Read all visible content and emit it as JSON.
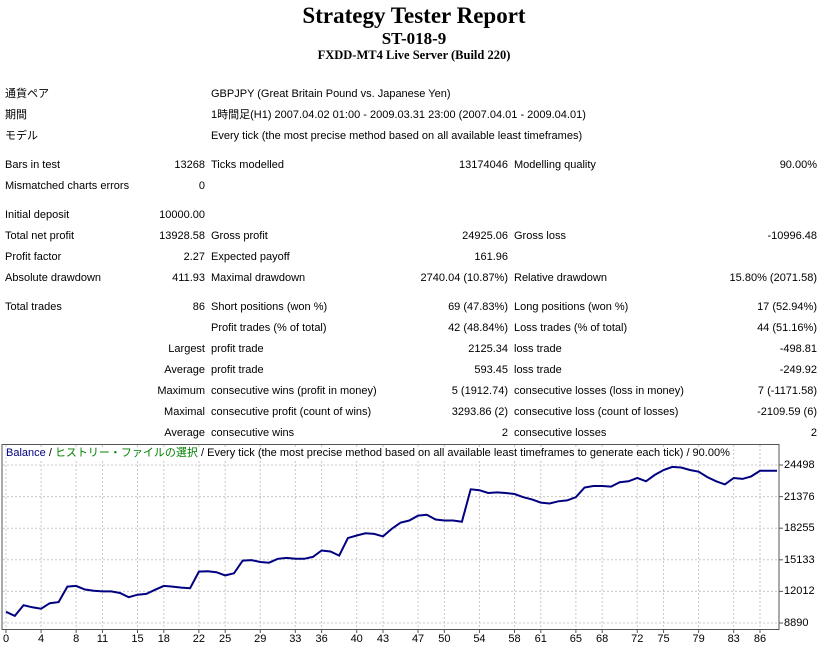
{
  "report": {
    "title": "Strategy Tester Report",
    "subtitle": "ST-018-9",
    "server": "FXDD-MT4 Live Server (Build 220)"
  },
  "summary_rows": [
    {
      "c1": "通貨ペア",
      "c3": "GBPJPY (Great Britain Pound vs. Japanese Yen)",
      "span": true
    },
    {
      "c1": "期間",
      "c3": "1時間足(H1) 2007.04.02 01:00 - 2009.03.31 23:00 (2007.04.01 - 2009.04.01)",
      "span": true
    },
    {
      "c1": "モデル",
      "c3": "Every tick (the most precise method based on all available least timeframes)",
      "span": true
    },
    {
      "c1": "Bars in test",
      "c2": "13268",
      "c3": "Ticks modelled",
      "c4": "13174046",
      "c5": "Modelling quality",
      "c6": "90.00%",
      "gap": true
    },
    {
      "c1": "Mismatched charts errors",
      "c2": "0"
    },
    {
      "c1": "Initial deposit",
      "c2": "10000.00",
      "gap": true
    },
    {
      "c1": "Total net profit",
      "c2": "13928.58",
      "c3": "Gross profit",
      "c4": "24925.06",
      "c5": "Gross loss",
      "c6": "-10996.48"
    },
    {
      "c1": "Profit factor",
      "c2": "2.27",
      "c3": "Expected payoff",
      "c4": "161.96"
    },
    {
      "c1": "Absolute drawdown",
      "c2": "411.93",
      "c3": "Maximal drawdown",
      "c4": "2740.04 (10.87%)",
      "c5": "Relative drawdown",
      "c6": "15.80% (2071.58)"
    },
    {
      "c1": "Total trades",
      "c2": "86",
      "c3": "Short positions (won %)",
      "c4": "69 (47.83%)",
      "c5": "Long positions (won %)",
      "c6": "17 (52.94%)",
      "gap": true
    },
    {
      "c3": "Profit trades (% of total)",
      "c4": "42 (48.84%)",
      "c5": "Loss trades (% of total)",
      "c6": "44 (51.16%)"
    },
    {
      "c2": "Largest",
      "c3": "profit trade",
      "c4": "2125.34",
      "c5": "loss trade",
      "c6": "-498.81"
    },
    {
      "c2": "Average",
      "c3": "profit trade",
      "c4": "593.45",
      "c5": "loss trade",
      "c6": "-249.92"
    },
    {
      "c2": "Maximum",
      "c3": "consecutive wins (profit in money)",
      "c4": "5 (1912.74)",
      "c5": "consecutive losses (loss in money)",
      "c6": "7 (-1171.58)"
    },
    {
      "c2": "Maximal",
      "c3": "consecutive profit (count of wins)",
      "c4": "3293.86 (2)",
      "c5": "consecutive loss (count of losses)",
      "c6": "-2109.59 (6)"
    },
    {
      "c2": "Average",
      "c3": "consecutive wins",
      "c4": "2",
      "c5": "consecutive losses",
      "c6": "2"
    }
  ],
  "chart_data": {
    "type": "line",
    "title_segments": [
      {
        "text": "Balance",
        "color": "#000080"
      },
      {
        "text": " / ",
        "color": "#000000"
      },
      {
        "text": "ヒストリー・ファイルの選択",
        "color": "#008000"
      },
      {
        "text": " / Every tick (the most precise method based on all available least timeframes to generate each tick) / 90.00%",
        "color": "#000000"
      }
    ],
    "x_ticks": [
      0,
      4,
      8,
      11,
      15,
      18,
      22,
      25,
      29,
      33,
      36,
      40,
      43,
      47,
      50,
      54,
      58,
      61,
      65,
      68,
      72,
      75,
      79,
      83,
      86
    ],
    "y_ticks": [
      24498,
      21376,
      18255,
      15133,
      12012,
      8890
    ],
    "xlim": [
      0,
      86
    ],
    "ylim": [
      8890,
      24498
    ],
    "grid": true,
    "line_color": "#000080",
    "grid_color": "#c8c8c8",
    "series": [
      {
        "name": "Balance",
        "values": [
          10000,
          9590,
          10650,
          10440,
          10300,
          10850,
          10950,
          12485,
          12550,
          12200,
          12075,
          12010,
          12010,
          11850,
          11440,
          11690,
          11760,
          12170,
          12550,
          12485,
          12390,
          12330,
          13970,
          14000,
          13905,
          13590,
          13800,
          15050,
          15100,
          14915,
          14850,
          15230,
          15325,
          15230,
          15230,
          15420,
          16050,
          15950,
          15545,
          17280,
          17530,
          17750,
          17690,
          17440,
          18200,
          18800,
          19015,
          19500,
          19580,
          19110,
          19015,
          19015,
          18890,
          22100,
          22010,
          21730,
          21790,
          21730,
          21630,
          21320,
          21100,
          20780,
          20690,
          20910,
          21000,
          21320,
          22280,
          22420,
          22420,
          22360,
          22800,
          22890,
          23210,
          22890,
          23520,
          24000,
          24310,
          24250,
          24000,
          23840,
          23300,
          22890,
          22580,
          23210,
          23120,
          23370,
          23928.58
        ]
      }
    ]
  }
}
